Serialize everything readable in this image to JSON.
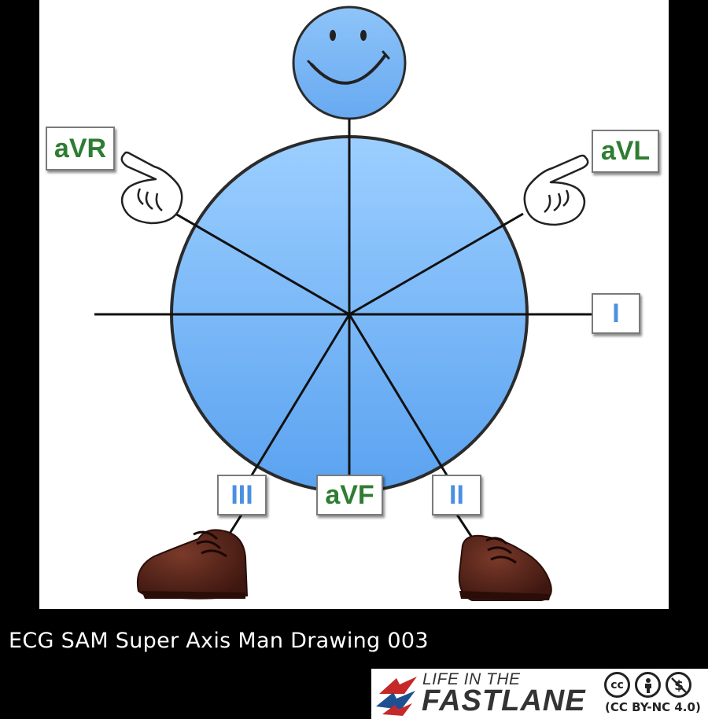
{
  "leads": {
    "avr": "aVR",
    "avl": "aVL",
    "i": "I",
    "ii": "II",
    "iii": "III",
    "avf": "aVF"
  },
  "caption": "ECG SAM Super Axis Man Drawing 003",
  "logo": {
    "top_text": "LIFE IN THE",
    "main_text": "FASTLANE",
    "license_text": "(CC BY-NC 4.0)",
    "cc_label": "cc"
  },
  "colors": {
    "circle_fill": "#6fb0f5",
    "circle_stroke": "#2b2b2b",
    "lead_green": "#2e7d32",
    "lead_blue": "#4a90e2",
    "shoe": "#5a2a1e",
    "logo_red": "#c62828",
    "logo_blue": "#1e4f91"
  },
  "icons": [
    "smiley-face-icon",
    "pointing-hand-icon",
    "shoe-icon",
    "creative-commons-icon",
    "attribution-icon",
    "non-commercial-icon"
  ]
}
